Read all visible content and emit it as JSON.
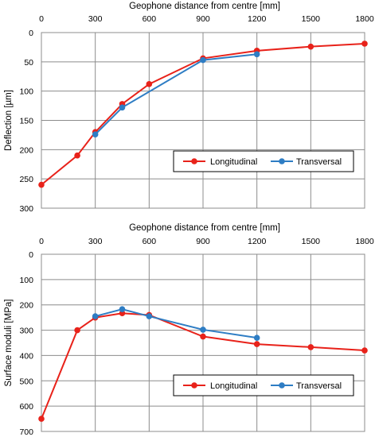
{
  "chart_data": [
    {
      "type": "line",
      "title": "Geophone  distance from centre [mm]",
      "ylabel": "Deflection [µm]",
      "xlim": [
        0,
        1800
      ],
      "ylim": [
        0,
        300
      ],
      "y_inverted": true,
      "x_axis_position": "top",
      "grid": true,
      "legend_position": "lower-right",
      "x_ticks": [
        "0",
        "300",
        "600",
        "900",
        "1200",
        "1500",
        "1800"
      ],
      "y_ticks": [
        "0",
        "50",
        "100",
        "150",
        "200",
        "250",
        "300"
      ],
      "series": [
        {
          "name": "Longitudinal",
          "color": "#e8221a",
          "x": [
            0,
            200,
            300,
            450,
            600,
            900,
            1200,
            1500,
            1800
          ],
          "y": [
            260,
            210,
            170,
            122,
            88,
            44,
            31,
            24,
            19
          ]
        },
        {
          "name": "Transversal",
          "color": "#2e7dc4",
          "x": [
            300,
            450,
            900,
            1200
          ],
          "y": [
            174,
            128,
            47,
            37
          ]
        }
      ]
    },
    {
      "type": "line",
      "title": "Geophone  distance from centre [mm]",
      "ylabel": "Surface moduli [MPa]",
      "xlim": [
        0,
        1800
      ],
      "ylim": [
        0,
        700
      ],
      "y_inverted": true,
      "x_axis_position": "top",
      "grid": true,
      "legend_position": "lower-right",
      "x_ticks": [
        "0",
        "300",
        "600",
        "900",
        "1200",
        "1500",
        "1800"
      ],
      "y_ticks": [
        "0",
        "100",
        "200",
        "300",
        "400",
        "500",
        "600",
        "700"
      ],
      "series": [
        {
          "name": "Longitudinal",
          "color": "#e8221a",
          "x": [
            0,
            200,
            300,
            450,
            600,
            900,
            1200,
            1500,
            1800
          ],
          "y": [
            650,
            300,
            250,
            233,
            240,
            325,
            355,
            367,
            380
          ]
        },
        {
          "name": "Transversal",
          "color": "#2e7dc4",
          "x": [
            300,
            450,
            600,
            900,
            1200
          ],
          "y": [
            245,
            217,
            245,
            298,
            330
          ]
        }
      ]
    }
  ]
}
